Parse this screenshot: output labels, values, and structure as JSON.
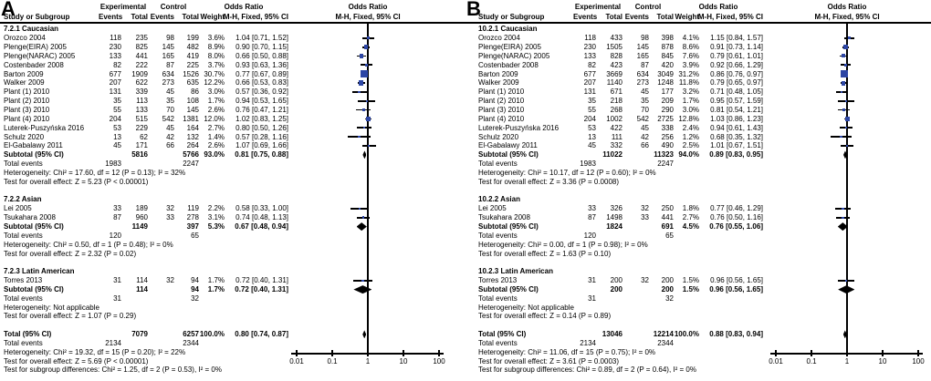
{
  "headers": {
    "group_experimental": "Experimental",
    "group_control": "Control",
    "odds_ratio": "Odds Ratio",
    "study": "Study or Subgroup",
    "events": "Events",
    "total": "Total",
    "weight": "Weight",
    "method": "M-H, Fixed, 95% CI"
  },
  "axis": {
    "scale": "log",
    "values": [
      0.01,
      0.1,
      1,
      10,
      100
    ],
    "labels": [
      "0.01",
      "0.1",
      "1",
      "10",
      "100"
    ]
  },
  "colors": {
    "marker_blue": "#2d46a5",
    "line_black": "#000000"
  },
  "chart_data": [
    {
      "type": "forest",
      "panel": "A",
      "sections": [
        {
          "title": "7.2.1 Caucasian",
          "studies": [
            {
              "name": "Orozco 2004",
              "ee": 118,
              "et": 235,
              "ce": 98,
              "ct": 199,
              "w": "3.6%",
              "ci": "1.04 [0.71, 1.52]",
              "or": 1.04,
              "lo": 0.71,
              "hi": 1.52
            },
            {
              "name": "Plenge(EIRA) 2005",
              "ee": 230,
              "et": 825,
              "ce": 145,
              "ct": 482,
              "w": "8.9%",
              "ci": "0.90 [0.70, 1.15]",
              "or": 0.9,
              "lo": 0.7,
              "hi": 1.15
            },
            {
              "name": "Plenge(NARAC) 2005",
              "ee": 133,
              "et": 441,
              "ce": 165,
              "ct": 419,
              "w": "8.0%",
              "ci": "0.66 [0.50, 0.88]",
              "or": 0.66,
              "lo": 0.5,
              "hi": 0.88
            },
            {
              "name": "Costenbader 2008",
              "ee": 82,
              "et": 222,
              "ce": 87,
              "ct": 225,
              "w": "3.7%",
              "ci": "0.93 [0.63, 1.36]",
              "or": 0.93,
              "lo": 0.63,
              "hi": 1.36
            },
            {
              "name": "Barton 2009",
              "ee": 677,
              "et": 1909,
              "ce": 634,
              "ct": 1526,
              "w": "30.7%",
              "ci": "0.77 [0.67, 0.89]",
              "or": 0.77,
              "lo": 0.67,
              "hi": 0.89
            },
            {
              "name": "Walker 2009",
              "ee": 207,
              "et": 622,
              "ce": 273,
              "ct": 635,
              "w": "12.2%",
              "ci": "0.66 [0.53, 0.83]",
              "or": 0.66,
              "lo": 0.53,
              "hi": 0.83
            },
            {
              "name": "Plant (1) 2010",
              "ee": 131,
              "et": 339,
              "ce": 45,
              "ct": 86,
              "w": "3.0%",
              "ci": "0.57 [0.36, 0.92]",
              "or": 0.57,
              "lo": 0.36,
              "hi": 0.92
            },
            {
              "name": "Plant (2) 2010",
              "ee": 35,
              "et": 113,
              "ce": 35,
              "ct": 108,
              "w": "1.7%",
              "ci": "0.94 [0.53, 1.65]",
              "or": 0.94,
              "lo": 0.53,
              "hi": 1.65
            },
            {
              "name": "Plant (3) 2010",
              "ee": 55,
              "et": 133,
              "ce": 70,
              "ct": 145,
              "w": "2.6%",
              "ci": "0.76 [0.47, 1.21]",
              "or": 0.76,
              "lo": 0.47,
              "hi": 1.21
            },
            {
              "name": "Plant (4) 2010",
              "ee": 204,
              "et": 515,
              "ce": 542,
              "ct": 1381,
              "w": "12.0%",
              "ci": "1.02 [0.83, 1.25]",
              "or": 1.02,
              "lo": 0.83,
              "hi": 1.25
            },
            {
              "name": "Luterek-Puszyńska 2016",
              "ee": 53,
              "et": 229,
              "ce": 45,
              "ct": 164,
              "w": "2.7%",
              "ci": "0.80 [0.50, 1.26]",
              "or": 0.8,
              "lo": 0.5,
              "hi": 1.26
            },
            {
              "name": "Schulz 2020",
              "ee": 13,
              "et": 62,
              "ce": 42,
              "ct": 132,
              "w": "1.4%",
              "ci": "0.57 [0.28, 1.16]",
              "or": 0.57,
              "lo": 0.28,
              "hi": 1.16
            },
            {
              "name": "El-Gabalawy 2011",
              "ee": 45,
              "et": 171,
              "ce": 66,
              "ct": 264,
              "w": "2.6%",
              "ci": "1.07 [0.69, 1.66]",
              "or": 1.07,
              "lo": 0.69,
              "hi": 1.66
            }
          ],
          "subtotal": {
            "label": "Subtotal (95% CI)",
            "et": 5816,
            "ct": 5766,
            "w": "93.0%",
            "ci": "0.81 [0.75, 0.88]",
            "or": 0.81,
            "lo": 0.75,
            "hi": 0.88
          },
          "total_events": {
            "label": "Total events",
            "e": 1983,
            "c": 2247
          },
          "heterogeneity": "Heterogeneity: Chi² = 17.60, df = 12 (P = 0.13); I² = 32%",
          "overall": "Test for overall effect: Z = 5.23 (P < 0.00001)"
        },
        {
          "title": "7.2.2 Asian",
          "studies": [
            {
              "name": "Lei 2005",
              "ee": 33,
              "et": 189,
              "ce": 32,
              "ct": 119,
              "w": "2.2%",
              "ci": "0.58 [0.33, 1.00]",
              "or": 0.58,
              "lo": 0.33,
              "hi": 1.0
            },
            {
              "name": "Tsukahara 2008",
              "ee": 87,
              "et": 960,
              "ce": 33,
              "ct": 278,
              "w": "3.1%",
              "ci": "0.74 [0.48, 1.13]",
              "or": 0.74,
              "lo": 0.48,
              "hi": 1.13
            }
          ],
          "subtotal": {
            "label": "Subtotal (95% CI)",
            "et": 1149,
            "ct": 397,
            "w": "5.3%",
            "ci": "0.67 [0.48, 0.94]",
            "or": 0.67,
            "lo": 0.48,
            "hi": 0.94
          },
          "total_events": {
            "label": "Total events",
            "e": 120,
            "c": 65
          },
          "heterogeneity": "Heterogeneity: Chi² = 0.50, df = 1 (P = 0.48); I² = 0%",
          "overall": "Test for overall effect: Z = 2.32 (P = 0.02)"
        },
        {
          "title": "7.2.3 Latin American",
          "studies": [
            {
              "name": "Torres 2013",
              "ee": 31,
              "et": 114,
              "ce": 32,
              "ct": 94,
              "w": "1.7%",
              "ci": "0.72 [0.40, 1.31]",
              "or": 0.72,
              "lo": 0.4,
              "hi": 1.31
            }
          ],
          "subtotal": {
            "label": "Subtotal (95% CI)",
            "et": 114,
            "ct": 94,
            "w": "1.7%",
            "ci": "0.72 [0.40, 1.31]",
            "or": 0.72,
            "lo": 0.4,
            "hi": 1.31
          },
          "total_events": {
            "label": "Total events",
            "e": 31,
            "c": 32
          },
          "heterogeneity": "Heterogeneity: Not applicable",
          "overall": "Test for overall effect: Z = 1.07 (P = 0.29)"
        }
      ],
      "total": {
        "label": "Total (95% CI)",
        "et": 7079,
        "ct": 6257,
        "w": "100.0%",
        "ci": "0.80 [0.74, 0.87]",
        "or": 0.8,
        "lo": 0.74,
        "hi": 0.87,
        "total_events": {
          "label": "Total events",
          "e": 2134,
          "c": 2344
        },
        "heterogeneity": "Heterogeneity: Chi² = 19.32, df = 15 (P = 0.20); I² = 22%",
        "overall": "Test for overall effect: Z = 5.69 (P < 0.00001)",
        "subgroup": "Test for subgroup differences: Chi² = 1.25, df = 2 (P = 0.53), I² = 0%"
      }
    },
    {
      "type": "forest",
      "panel": "B",
      "sections": [
        {
          "title": "10.2.1 Caucasian",
          "studies": [
            {
              "name": "Orozco 2004",
              "ee": 118,
              "et": 433,
              "ce": 98,
              "ct": 398,
              "w": "4.1%",
              "ci": "1.15 [0.84, 1.57]",
              "or": 1.15,
              "lo": 0.84,
              "hi": 1.57
            },
            {
              "name": "Plenge(EIRA) 2005",
              "ee": 230,
              "et": 1505,
              "ce": 145,
              "ct": 878,
              "w": "8.6%",
              "ci": "0.91 [0.73, 1.14]",
              "or": 0.91,
              "lo": 0.73,
              "hi": 1.14
            },
            {
              "name": "Plenge(NARAC) 2005",
              "ee": 133,
              "et": 828,
              "ce": 165,
              "ct": 845,
              "w": "7.6%",
              "ci": "0.79 [0.61, 1.01]",
              "or": 0.79,
              "lo": 0.61,
              "hi": 1.01
            },
            {
              "name": "Costenbader 2008",
              "ee": 82,
              "et": 423,
              "ce": 87,
              "ct": 420,
              "w": "3.9%",
              "ci": "0.92 [0.66, 1.29]",
              "or": 0.92,
              "lo": 0.66,
              "hi": 1.29
            },
            {
              "name": "Barton 2009",
              "ee": 677,
              "et": 3669,
              "ce": 634,
              "ct": 3049,
              "w": "31.2%",
              "ci": "0.86 [0.76, 0.97]",
              "or": 0.86,
              "lo": 0.76,
              "hi": 0.97
            },
            {
              "name": "Walker 2009",
              "ee": 207,
              "et": 1140,
              "ce": 273,
              "ct": 1248,
              "w": "11.8%",
              "ci": "0.79 [0.65, 0.97]",
              "or": 0.79,
              "lo": 0.65,
              "hi": 0.97
            },
            {
              "name": "Plant (1) 2010",
              "ee": 131,
              "et": 671,
              "ce": 45,
              "ct": 177,
              "w": "3.2%",
              "ci": "0.71 [0.48, 1.05]",
              "or": 0.71,
              "lo": 0.48,
              "hi": 1.05
            },
            {
              "name": "Plant (2) 2010",
              "ee": 35,
              "et": 218,
              "ce": 35,
              "ct": 209,
              "w": "1.7%",
              "ci": "0.95 [0.57, 1.59]",
              "or": 0.95,
              "lo": 0.57,
              "hi": 1.59
            },
            {
              "name": "Plant (3) 2010",
              "ee": 55,
              "et": 268,
              "ce": 70,
              "ct": 290,
              "w": "3.0%",
              "ci": "0.81 [0.54, 1.21]",
              "or": 0.81,
              "lo": 0.54,
              "hi": 1.21
            },
            {
              "name": "Plant (4) 2010",
              "ee": 204,
              "et": 1002,
              "ce": 542,
              "ct": 2725,
              "w": "12.8%",
              "ci": "1.03 [0.86, 1.23]",
              "or": 1.03,
              "lo": 0.86,
              "hi": 1.23
            },
            {
              "name": "Luterek-Puszyńska 2016",
              "ee": 53,
              "et": 422,
              "ce": 45,
              "ct": 338,
              "w": "2.4%",
              "ci": "0.94 [0.61, 1.43]",
              "or": 0.94,
              "lo": 0.61,
              "hi": 1.43
            },
            {
              "name": "Schulz 2020",
              "ee": 13,
              "et": 111,
              "ce": 42,
              "ct": 256,
              "w": "1.2%",
              "ci": "0.68 [0.35, 1.32]",
              "or": 0.68,
              "lo": 0.35,
              "hi": 1.32
            },
            {
              "name": "El-Gabalawy 2011",
              "ee": 45,
              "et": 332,
              "ce": 66,
              "ct": 490,
              "w": "2.5%",
              "ci": "1.01 [0.67, 1.51]",
              "or": 1.01,
              "lo": 0.67,
              "hi": 1.51
            }
          ],
          "subtotal": {
            "label": "Subtotal (95% CI)",
            "et": 11022,
            "ct": 11323,
            "w": "94.0%",
            "ci": "0.89 [0.83, 0.95]",
            "or": 0.89,
            "lo": 0.83,
            "hi": 0.95
          },
          "total_events": {
            "label": "Total events",
            "e": 1983,
            "c": 2247
          },
          "heterogeneity": "Heterogeneity: Chi² = 10.17, df = 12 (P = 0.60); I² = 0%",
          "overall": "Test for overall effect: Z = 3.36 (P = 0.0008)"
        },
        {
          "title": "10.2.2 Asian",
          "studies": [
            {
              "name": "Lei 2005",
              "ee": 33,
              "et": 326,
              "ce": 32,
              "ct": 250,
              "w": "1.8%",
              "ci": "0.77 [0.46, 1.29]",
              "or": 0.77,
              "lo": 0.46,
              "hi": 1.29
            },
            {
              "name": "Tsukahara 2008",
              "ee": 87,
              "et": 1498,
              "ce": 33,
              "ct": 441,
              "w": "2.7%",
              "ci": "0.76 [0.50, 1.16]",
              "or": 0.76,
              "lo": 0.5,
              "hi": 1.16
            }
          ],
          "subtotal": {
            "label": "Subtotal (95% CI)",
            "et": 1824,
            "ct": 691,
            "w": "4.5%",
            "ci": "0.76 [0.55, 1.06]",
            "or": 0.76,
            "lo": 0.55,
            "hi": 1.06
          },
          "total_events": {
            "label": "Total events",
            "e": 120,
            "c": 65
          },
          "heterogeneity": "Heterogeneity: Chi² = 0.00, df = 1 (P = 0.98); I² = 0%",
          "overall": "Test for overall effect: Z = 1.63 (P = 0.10)"
        },
        {
          "title": "10.2.3 Latin American",
          "studies": [
            {
              "name": "Torres 2013",
              "ee": 31,
              "et": 200,
              "ce": 32,
              "ct": 200,
              "w": "1.5%",
              "ci": "0.96 [0.56, 1.65]",
              "or": 0.96,
              "lo": 0.56,
              "hi": 1.65
            }
          ],
          "subtotal": {
            "label": "Subtotal (95% CI)",
            "et": 200,
            "ct": 200,
            "w": "1.5%",
            "ci": "0.96 [0.56, 1.65]",
            "or": 0.96,
            "lo": 0.56,
            "hi": 1.65
          },
          "total_events": {
            "label": "Total events",
            "e": 31,
            "c": 32
          },
          "heterogeneity": "Heterogeneity: Not applicable",
          "overall": "Test for overall effect: Z = 0.14 (P = 0.89)"
        }
      ],
      "total": {
        "label": "Total (95% CI)",
        "et": 13046,
        "ct": 12214,
        "w": "100.0%",
        "ci": "0.88 [0.83, 0.94]",
        "or": 0.88,
        "lo": 0.83,
        "hi": 0.94,
        "total_events": {
          "label": "Total events",
          "e": 2134,
          "c": 2344
        },
        "heterogeneity": "Heterogeneity: Chi² = 11.06, df = 15 (P = 0.75); I² = 0%",
        "overall": "Test for overall effect: Z = 3.61 (P = 0.0003)",
        "subgroup": "Test for subgroup differences: Chi² = 0.89, df = 2 (P = 0.64), I² = 0%"
      }
    }
  ]
}
